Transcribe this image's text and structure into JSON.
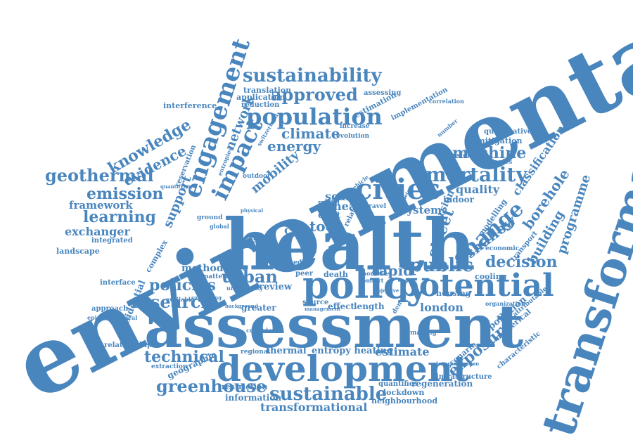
{
  "words": {
    "environmental": "environmental",
    "health": "health",
    "assessment": "assessment",
    "transformation": "transformation",
    "development": "development",
    "policy": "policy",
    "potential": "potential",
    "cities": "cities",
    "population": "population",
    "engagement": "engagement",
    "impact": "impact",
    "sustainability": "sustainability",
    "approved": "approved",
    "mortality": "mortality",
    "change": "change",
    "greenhouse": "greenhouse",
    "sustainable": "sustainable",
    "public": "public",
    "research": "research",
    "urban": "urban",
    "policies": "policies",
    "technical": "technical",
    "exposure": "exposure",
    "decision": "decision",
    "street": "street",
    "shallow": "shallow",
    "borehole": "borehole",
    "building": "building",
    "programme": "programme",
    "machine": "machine",
    "geothermal": "geothermal",
    "emission": "emission",
    "learning": "learning",
    "knowledge": "knowledge",
    "evidence": "evidence",
    "support": "support",
    "network": "network",
    "climate": "climate",
    "energy": "energy",
    "mobility": "mobility",
    "framework": "framework",
    "exchanger": "exchanger",
    "quality": "quality",
    "classification": "classification",
    "transformational": "transformational",
    "london": "london",
    "rapid": "rapid",
    "estimate": "estimate",
    "regeneration": "regeneration",
    "tool": "tool",
    "system": "system",
    "heat": "heat",
    "city": "city",
    "scale": "scale",
    "method": "method",
    "review": "review",
    "entropy_heating": "entropy heating",
    "thermal": "thermal",
    "restriction": "restriction",
    "information": "information",
    "lockdown": "lockdown",
    "neighbourhood": "neighbourhood",
    "quantifies": "quantifies",
    "infrastructure": "infrastructure",
    "scenario": "scenario",
    "pollution": "pollution",
    "numerical": "numerical",
    "characteristic": "characteristic",
    "residential": "residential",
    "geographic": "geographic",
    "extraction": "extraction",
    "relationship": "relationship",
    "approach": "approach",
    "epidemiological": "epidemiological",
    "interface": "interface",
    "landscape": "landscape",
    "integrated": "integrated",
    "complex": "complex",
    "interference": "interference",
    "translation": "translation",
    "application": "application",
    "reduction": "reduction",
    "assessing": "assessing",
    "estimation": "estimation",
    "implementation": "implementation",
    "increase": "increase",
    "evolution": "evolution",
    "quantitative": "quantitative",
    "mitigation": "mitigation",
    "strategies": "strategies",
    "transfer": "transfer",
    "number": "number",
    "version": "version",
    "modelling": "modelling",
    "transport": "transport",
    "economic": "economic",
    "cooling": "cooling",
    "housing": "housing",
    "organization": "organization",
    "attributable": "attributable",
    "greater": "greater",
    "effect": "effect",
    "length": "length",
    "source": "source",
    "death": "death",
    "peer": "peer",
    "result": "result",
    "pattern": "pattern",
    "uncertainty": "uncertainty",
    "regional": "regional",
    "making": "making",
    "countdown": "countdown",
    "indoor": "indoor",
    "outdoor": "outdoor",
    "ground": "ground",
    "global": "global",
    "craft": "craft",
    "travel": "travel",
    "related": "related",
    "model": "model",
    "gshps": "gshps",
    "density": "density",
    "based": "based",
    "anomalies": "anomalies",
    "comfort": "comfort",
    "objective": "objective",
    "management": "management",
    "background": "background",
    "reservation": "reservation",
    "quantifying": "quantifying",
    "available": "available",
    "supporting": "supporting",
    "switzerland": "switzerland",
    "entropies": "entropies",
    "physical": "physical",
    "vehicle": "vehicle",
    "decarbonisation": "decarbonisation",
    "parameter": "parameter",
    "correlation": "correlation"
  }
}
